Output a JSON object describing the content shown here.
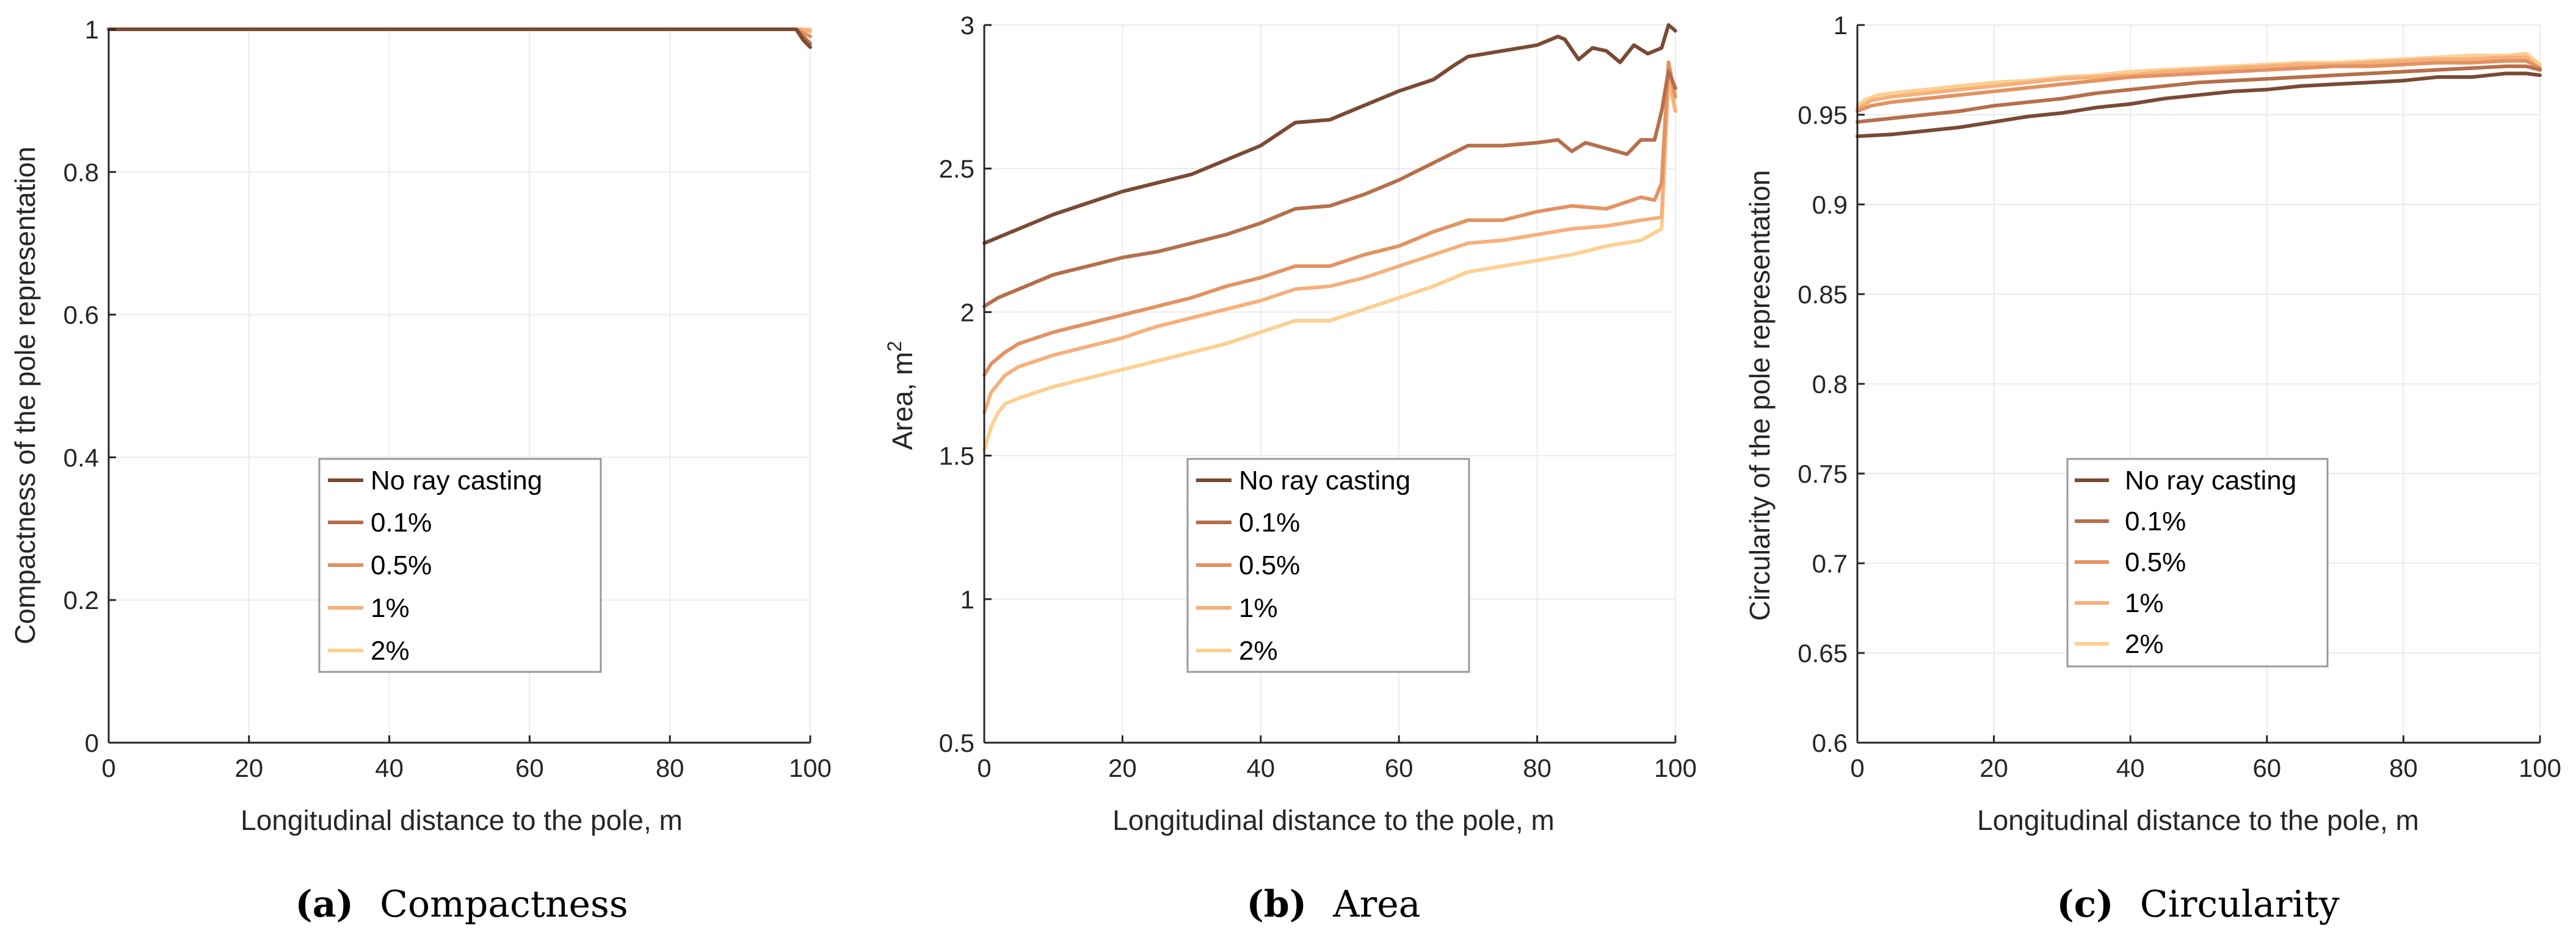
{
  "colors": {
    "axis": "#262626",
    "grid": "#ebebeb",
    "legend_border": "#9a9a9a",
    "series": [
      "#7a4a33",
      "#b66f4a",
      "#e39262",
      "#f6b07b",
      "#fdcf90"
    ]
  },
  "chart_data": [
    {
      "type": "line",
      "panel_letter": "(a)",
      "caption": "Compactness",
      "xlabel": "Longitudinal distance to the pole, m",
      "ylabel": "Compactness of the pole representation",
      "xlim": [
        0,
        100
      ],
      "ylim": [
        0,
        1
      ],
      "xticks": [
        0,
        20,
        40,
        60,
        80,
        100
      ],
      "yticks": [
        0,
        0.2,
        0.4,
        0.6,
        0.8,
        1
      ],
      "ytick_labels": [
        "0",
        "0.2",
        "0.4",
        "0.6",
        "0.8",
        "1"
      ],
      "legend": [
        "No ray casting",
        "0.1%",
        "0.5%",
        "1%",
        "2%"
      ],
      "legend_position": "lower-center",
      "series": [
        {
          "name": "No ray casting",
          "x": [
            0,
            97,
            98,
            99,
            100
          ],
          "y": [
            1,
            1,
            1,
            0.985,
            0.975
          ]
        },
        {
          "name": "0.1%",
          "x": [
            0,
            98,
            99,
            100
          ],
          "y": [
            1,
            1,
            0.99,
            0.98
          ]
        },
        {
          "name": "0.5%",
          "x": [
            0,
            98,
            99,
            100
          ],
          "y": [
            1,
            1,
            0.995,
            0.99
          ]
        },
        {
          "name": "1%",
          "x": [
            0,
            99,
            100
          ],
          "y": [
            1,
            1,
            0.997
          ]
        },
        {
          "name": "2%",
          "x": [
            0,
            100
          ],
          "y": [
            1,
            1
          ]
        }
      ]
    },
    {
      "type": "line",
      "panel_letter": "(b)",
      "caption": "Area",
      "xlabel": "Longitudinal distance to the pole, m",
      "ylabel": "Area, m",
      "ylabel_superscript": "2",
      "xlim": [
        0,
        100
      ],
      "ylim": [
        0.5,
        3
      ],
      "xticks": [
        0,
        20,
        40,
        60,
        80,
        100
      ],
      "yticks": [
        0.5,
        1,
        1.5,
        2,
        2.5,
        3
      ],
      "ytick_labels": [
        "0.5",
        "1",
        "1.5",
        "2",
        "2.5",
        "3"
      ],
      "legend": [
        "No ray casting",
        "0.1%",
        "0.5%",
        "1%",
        "2%"
      ],
      "legend_position": "center-right",
      "series": [
        {
          "name": "No ray casting",
          "x": [
            0,
            5,
            10,
            15,
            20,
            25,
            30,
            35,
            40,
            45,
            50,
            55,
            60,
            65,
            68,
            70,
            75,
            80,
            83,
            84,
            86,
            88,
            90,
            92,
            94,
            96,
            98,
            99,
            100
          ],
          "y": [
            2.24,
            2.29,
            2.34,
            2.38,
            2.42,
            2.45,
            2.48,
            2.53,
            2.58,
            2.66,
            2.67,
            2.72,
            2.77,
            2.81,
            2.86,
            2.89,
            2.91,
            2.93,
            2.96,
            2.95,
            2.88,
            2.92,
            2.91,
            2.87,
            2.93,
            2.9,
            2.92,
            3.0,
            2.98
          ]
        },
        {
          "name": "0.1%",
          "x": [
            0,
            2,
            5,
            10,
            15,
            20,
            25,
            30,
            35,
            40,
            45,
            50,
            55,
            60,
            65,
            70,
            75,
            80,
            83,
            85,
            87,
            90,
            93,
            95,
            97,
            98,
            99,
            100
          ],
          "y": [
            2.02,
            2.05,
            2.08,
            2.13,
            2.16,
            2.19,
            2.21,
            2.24,
            2.27,
            2.31,
            2.36,
            2.37,
            2.41,
            2.46,
            2.52,
            2.58,
            2.58,
            2.59,
            2.6,
            2.56,
            2.59,
            2.57,
            2.55,
            2.6,
            2.6,
            2.7,
            2.84,
            2.78
          ]
        },
        {
          "name": "0.5%",
          "x": [
            0,
            1,
            3,
            5,
            10,
            15,
            20,
            25,
            30,
            35,
            40,
            45,
            50,
            55,
            60,
            65,
            70,
            75,
            80,
            85,
            90,
            95,
            97,
            98,
            99,
            100
          ],
          "y": [
            1.78,
            1.82,
            1.86,
            1.89,
            1.93,
            1.96,
            1.99,
            2.02,
            2.05,
            2.09,
            2.12,
            2.16,
            2.16,
            2.2,
            2.23,
            2.28,
            2.32,
            2.32,
            2.35,
            2.37,
            2.36,
            2.4,
            2.39,
            2.45,
            2.87,
            2.75
          ]
        },
        {
          "name": "1%",
          "x": [
            0,
            1,
            3,
            5,
            10,
            15,
            20,
            25,
            30,
            35,
            40,
            45,
            50,
            55,
            60,
            65,
            70,
            75,
            80,
            85,
            90,
            95,
            98,
            99,
            100
          ],
          "y": [
            1.65,
            1.72,
            1.78,
            1.81,
            1.85,
            1.88,
            1.91,
            1.95,
            1.98,
            2.01,
            2.04,
            2.08,
            2.09,
            2.12,
            2.16,
            2.2,
            2.24,
            2.25,
            2.27,
            2.29,
            2.3,
            2.32,
            2.33,
            2.85,
            2.7
          ]
        },
        {
          "name": "2%",
          "x": [
            0,
            1,
            2,
            3,
            5,
            10,
            15,
            20,
            25,
            30,
            35,
            40,
            45,
            50,
            55,
            60,
            65,
            70,
            75,
            80,
            85,
            90,
            95,
            98,
            99,
            100
          ],
          "y": [
            1.52,
            1.6,
            1.65,
            1.68,
            1.7,
            1.74,
            1.77,
            1.8,
            1.83,
            1.86,
            1.89,
            1.93,
            1.97,
            1.97,
            2.01,
            2.05,
            2.09,
            2.14,
            2.16,
            2.18,
            2.2,
            2.23,
            2.25,
            2.29,
            2.8,
            2.7
          ]
        }
      ]
    },
    {
      "type": "line",
      "panel_letter": "(c)",
      "caption": "Circularity",
      "xlabel": "Longitudinal distance to the pole, m",
      "ylabel": "Circularity of the pole representation",
      "xlim": [
        0,
        100
      ],
      "ylim": [
        0.6,
        1
      ],
      "xticks": [
        0,
        20,
        40,
        60,
        80,
        100
      ],
      "yticks": [
        0.6,
        0.65,
        0.7,
        0.75,
        0.8,
        0.85,
        0.9,
        0.95,
        1
      ],
      "ytick_labels": [
        "0.6",
        "0.65",
        "0.7",
        "0.75",
        "0.8",
        "0.85",
        "0.9",
        "0.95",
        "1"
      ],
      "legend": [
        "No ray casting",
        "0.1%",
        "0.5%",
        "1%",
        "2%"
      ],
      "legend_position": "center-left",
      "series": [
        {
          "name": "No ray casting",
          "x": [
            0,
            5,
            10,
            15,
            20,
            25,
            30,
            35,
            40,
            45,
            50,
            55,
            60,
            65,
            70,
            75,
            80,
            85,
            90,
            95,
            98,
            100
          ],
          "y": [
            0.938,
            0.939,
            0.941,
            0.943,
            0.946,
            0.949,
            0.951,
            0.954,
            0.956,
            0.959,
            0.961,
            0.963,
            0.964,
            0.966,
            0.967,
            0.968,
            0.969,
            0.971,
            0.971,
            0.973,
            0.973,
            0.972
          ]
        },
        {
          "name": "0.1%",
          "x": [
            0,
            5,
            10,
            15,
            20,
            25,
            30,
            35,
            40,
            45,
            50,
            55,
            60,
            65,
            70,
            75,
            80,
            85,
            90,
            95,
            98,
            100
          ],
          "y": [
            0.946,
            0.948,
            0.95,
            0.952,
            0.955,
            0.957,
            0.959,
            0.962,
            0.964,
            0.966,
            0.968,
            0.969,
            0.97,
            0.971,
            0.972,
            0.973,
            0.974,
            0.975,
            0.976,
            0.977,
            0.977,
            0.975
          ]
        },
        {
          "name": "0.5%",
          "x": [
            0,
            2,
            5,
            10,
            15,
            20,
            25,
            30,
            35,
            40,
            45,
            50,
            55,
            60,
            65,
            70,
            75,
            80,
            85,
            90,
            95,
            98,
            100
          ],
          "y": [
            0.952,
            0.955,
            0.957,
            0.959,
            0.961,
            0.963,
            0.965,
            0.967,
            0.969,
            0.971,
            0.972,
            0.973,
            0.974,
            0.975,
            0.976,
            0.977,
            0.977,
            0.978,
            0.979,
            0.979,
            0.98,
            0.98,
            0.976
          ]
        },
        {
          "name": "1%",
          "x": [
            0,
            2,
            5,
            10,
            15,
            20,
            25,
            30,
            35,
            40,
            45,
            50,
            55,
            60,
            65,
            70,
            75,
            80,
            85,
            90,
            95,
            98,
            100
          ],
          "y": [
            0.953,
            0.958,
            0.96,
            0.962,
            0.964,
            0.966,
            0.968,
            0.97,
            0.971,
            0.972,
            0.974,
            0.975,
            0.976,
            0.977,
            0.978,
            0.978,
            0.979,
            0.98,
            0.981,
            0.981,
            0.982,
            0.982,
            0.975
          ]
        },
        {
          "name": "2%",
          "x": [
            0,
            1,
            3,
            5,
            10,
            15,
            20,
            25,
            30,
            35,
            40,
            45,
            50,
            55,
            60,
            65,
            70,
            75,
            80,
            85,
            90,
            95,
            98,
            100
          ],
          "y": [
            0.955,
            0.958,
            0.961,
            0.962,
            0.964,
            0.966,
            0.968,
            0.969,
            0.971,
            0.972,
            0.974,
            0.975,
            0.976,
            0.977,
            0.978,
            0.979,
            0.979,
            0.98,
            0.981,
            0.982,
            0.983,
            0.983,
            0.984,
            0.978
          ]
        }
      ]
    }
  ]
}
